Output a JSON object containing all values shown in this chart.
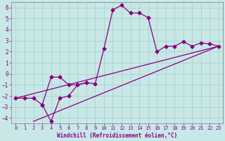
{
  "xlabel": "Windchill (Refroidissement éolien,°C)",
  "xlim": [
    -0.5,
    23.5
  ],
  "ylim": [
    -4.5,
    6.5
  ],
  "xticks": [
    0,
    1,
    2,
    3,
    4,
    5,
    6,
    7,
    8,
    9,
    10,
    11,
    12,
    13,
    14,
    15,
    16,
    17,
    18,
    19,
    20,
    21,
    22,
    23
  ],
  "yticks": [
    -4,
    -3,
    -2,
    -1,
    0,
    1,
    2,
    3,
    4,
    5,
    6
  ],
  "background_color": "#c8e8e8",
  "line_color": "#880080",
  "grid_color": "#b0d0d0",
  "line1_x": [
    0,
    1,
    2,
    3,
    4,
    5,
    6,
    7,
    8,
    9,
    10,
    11,
    12,
    13,
    14,
    15,
    16,
    17,
    18,
    19,
    20,
    21,
    22,
    23
  ],
  "line1_y": [
    -2.2,
    -2.2,
    -2.2,
    -2.8,
    -0.3,
    -0.3,
    -1.0,
    -1.0,
    -0.8,
    -0.9,
    2.3,
    5.8,
    6.2,
    5.5,
    5.5,
    5.1,
    2.0,
    2.5,
    2.5,
    2.9,
    2.5,
    2.8,
    2.7,
    2.5
  ],
  "line2_x": [
    0,
    23
  ],
  "line2_y": [
    -2.2,
    2.5
  ],
  "line3_x": [
    2,
    23
  ],
  "line3_y": [
    -4.3,
    2.5
  ],
  "extra_x": [
    3,
    4,
    5,
    6,
    7,
    8
  ],
  "extra_y": [
    -2.8,
    -4.3,
    -2.2,
    -2.0,
    -1.0,
    -0.8
  ],
  "marker": "D",
  "markersize": 2.5
}
